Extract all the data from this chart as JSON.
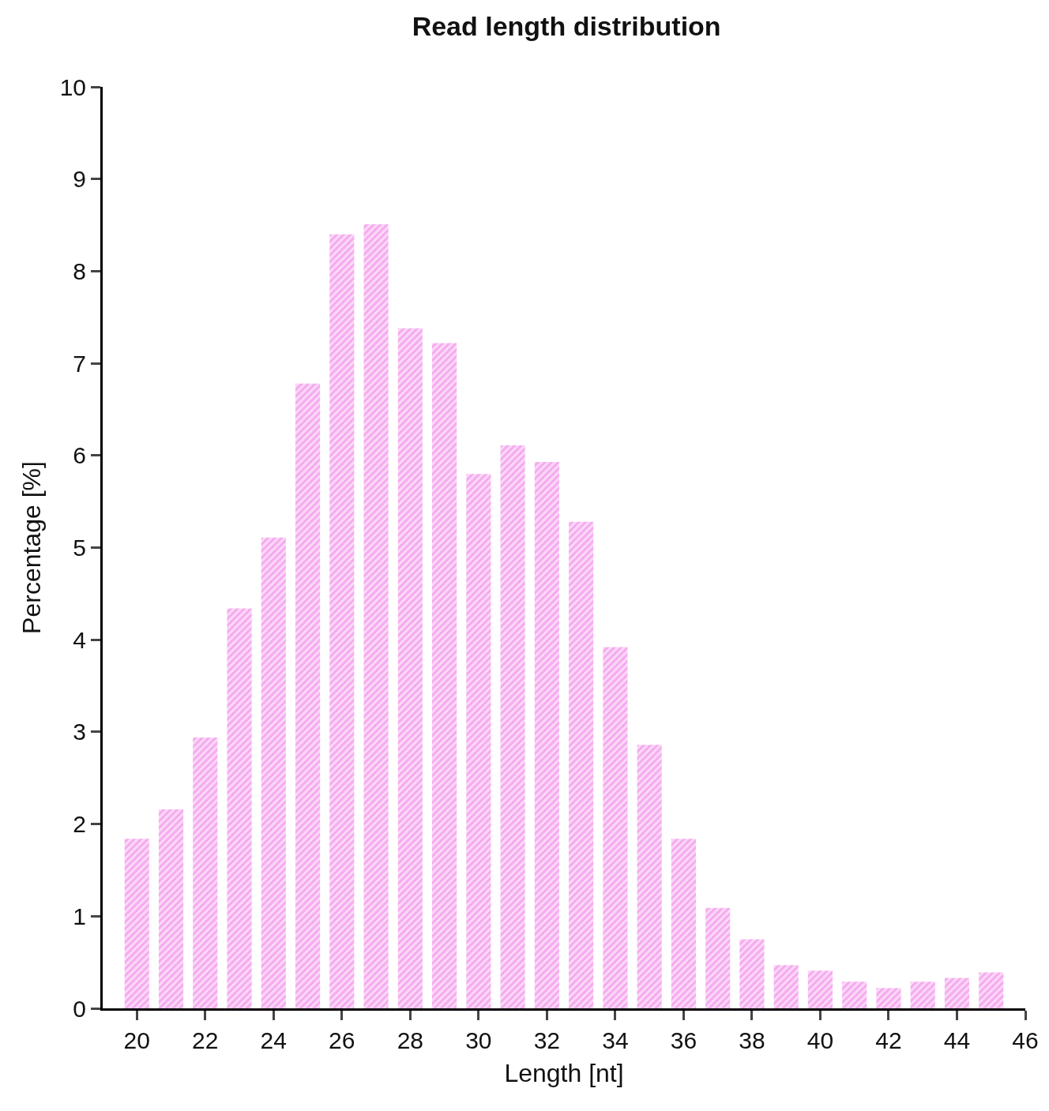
{
  "chart_data": {
    "type": "bar",
    "title": "Read length distribution",
    "xlabel": "Length [nt]",
    "ylabel": "Percentage [%]",
    "x": [
      20,
      21,
      22,
      23,
      24,
      25,
      26,
      27,
      28,
      29,
      30,
      31,
      32,
      33,
      34,
      35,
      36,
      37,
      38,
      39,
      40,
      41,
      42,
      43,
      44,
      45
    ],
    "values": [
      1.84,
      2.16,
      2.94,
      4.34,
      5.11,
      6.78,
      8.4,
      8.51,
      7.38,
      7.22,
      5.8,
      6.11,
      5.93,
      5.28,
      3.92,
      2.86,
      1.84,
      1.09,
      0.75,
      0.47,
      0.41,
      0.29,
      0.22,
      0.29,
      0.33,
      0.39
    ],
    "color": "#f07ae6",
    "xlim": [
      19,
      46
    ],
    "xticks": [
      20,
      22,
      24,
      26,
      28,
      30,
      32,
      34,
      36,
      38,
      40,
      42,
      44,
      46
    ],
    "ylim": [
      0,
      10
    ],
    "yticks": [
      0,
      1,
      2,
      3,
      4,
      5,
      6,
      7,
      8,
      9,
      10
    ]
  }
}
